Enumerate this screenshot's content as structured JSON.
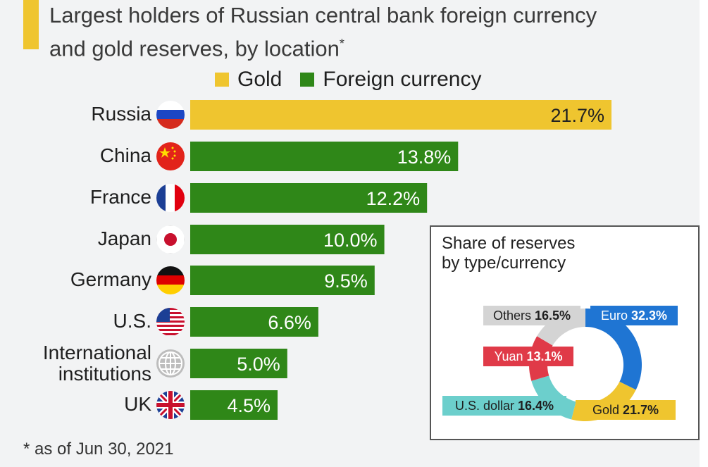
{
  "title_line1": "Largest holders of Russian central bank foreign currency",
  "title_line2": "and gold reserves, by location",
  "title_mark": "*",
  "footnote": "* as of Jun 30, 2021",
  "colors": {
    "gold": "#efc52f",
    "foreign_currency": "#2f8718",
    "accent": "#efc52f"
  },
  "chart_data": [
    {
      "type": "bar",
      "orientation": "horizontal",
      "categories": [
        "Russia",
        "China",
        "France",
        "Japan",
        "Germany",
        "U.S.",
        "International institutions",
        "UK"
      ],
      "values": [
        21.7,
        13.8,
        12.2,
        10.0,
        9.5,
        6.6,
        5.0,
        4.5
      ],
      "value_labels": [
        "21.7%",
        "13.8%",
        "12.2%",
        "10.0%",
        "9.5%",
        "6.6%",
        "5.0%",
        "4.5%"
      ],
      "reserve_type": [
        "Gold",
        "Foreign currency",
        "Foreign currency",
        "Foreign currency",
        "Foreign currency",
        "Foreign currency",
        "Foreign currency",
        "Foreign currency"
      ],
      "legend": [
        "Gold",
        "Foreign currency"
      ],
      "legend_position": "top",
      "flag_icons": [
        "russia-flag-icon",
        "china-flag-icon",
        "france-flag-icon",
        "japan-flag-icon",
        "germany-flag-icon",
        "us-flag-icon",
        "globe-icon",
        "uk-flag-icon"
      ],
      "xlim": [
        0,
        21.7
      ]
    },
    {
      "type": "pie",
      "donut": true,
      "title": "Share of reserves\nby type/currency",
      "slices": [
        {
          "label": "Euro",
          "value": 32.3,
          "display": "32.3%",
          "color": "#1f75d3"
        },
        {
          "label": "Gold",
          "value": 21.7,
          "display": "21.7%",
          "color": "#efc52f"
        },
        {
          "label": "U.S. dollar",
          "value": 16.4,
          "display": "16.4%",
          "color": "#6ccfcc"
        },
        {
          "label": "Yuan",
          "value": 13.1,
          "display": "13.1%",
          "color": "#e03a48"
        },
        {
          "label": "Others",
          "value": 16.5,
          "display": "16.5%",
          "color": "#d4d4d4"
        }
      ]
    }
  ]
}
